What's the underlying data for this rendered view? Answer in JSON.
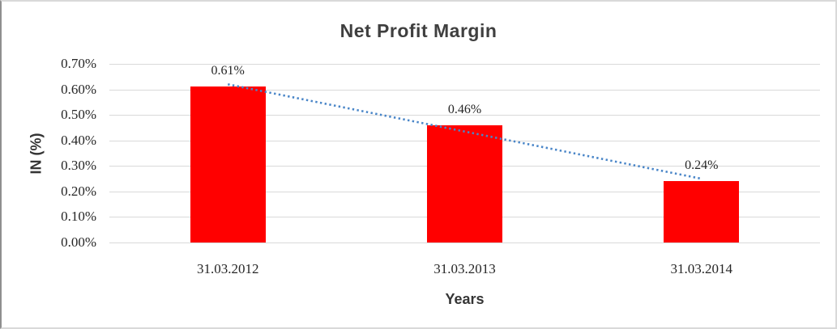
{
  "window": {
    "background_color": "#ffffff",
    "border_color": "#d9d9d9"
  },
  "chart_data": {
    "type": "bar",
    "title": "Net Profit Margin",
    "xlabel": "Years",
    "ylabel": "IN (%)",
    "categories": [
      "31.03.2012",
      "31.03.2013",
      "31.03.2014"
    ],
    "values": [
      0.61,
      0.46,
      0.24
    ],
    "data_labels": [
      "0.61%",
      "0.46%",
      "0.24%"
    ],
    "ylim": [
      0,
      0.7
    ],
    "ytick_step": 0.1,
    "ytick_labels": [
      "0.00%",
      "0.10%",
      "0.20%",
      "0.30%",
      "0.40%",
      "0.50%",
      "0.60%",
      "0.70%"
    ],
    "grid": true,
    "legend": "none",
    "bar_color": "#ff0000",
    "gridline_color": "#d9d9d9",
    "title_color": "#3f3f3f",
    "label_color": "#262626",
    "trendline": {
      "style": "dotted",
      "color": "#4a86c8",
      "start_value": 0.62,
      "end_value": 0.25
    }
  }
}
